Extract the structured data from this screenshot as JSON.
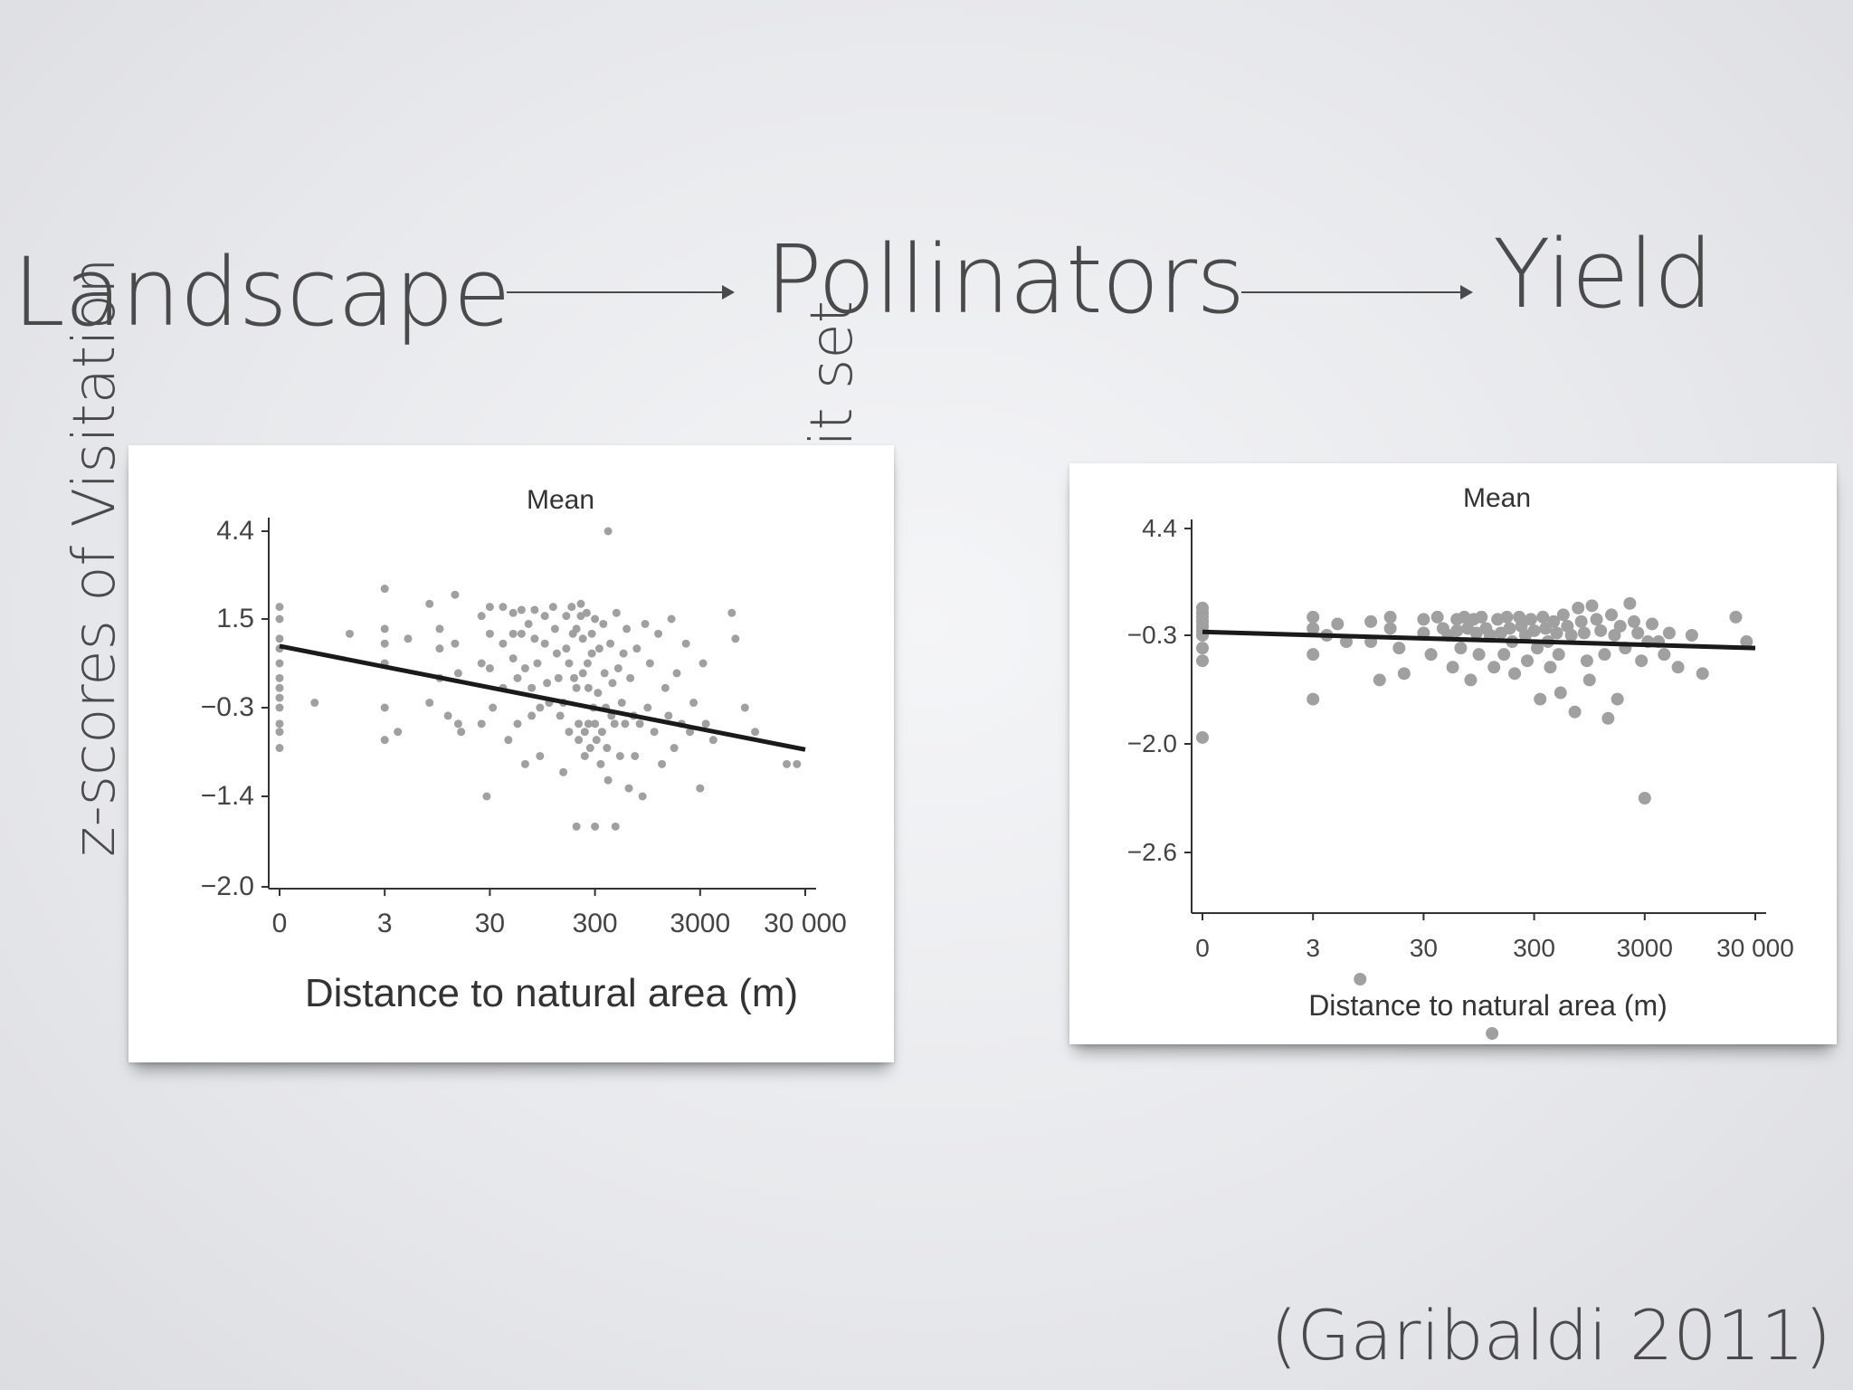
{
  "flow": {
    "step1": "Landscape",
    "step2": "Pollinators",
    "step3": "Yield"
  },
  "citation": "(Garibaldi 2011)",
  "colors": {
    "background": "#e9eaed",
    "text": "#4a4a4a",
    "points": "#a0a0a0",
    "trend": "#1a1a1a"
  },
  "chart_data": [
    {
      "type": "scatter",
      "panel_label": "z-scores of Visitation",
      "title": "Mean",
      "xlabel": "Distance to natural area (m)",
      "ylabel": "",
      "x_scale": "log",
      "x_ticks": [
        "0",
        "3",
        "30",
        "300",
        "3000",
        "30 000"
      ],
      "y_ticks": [
        "4.4",
        "1.5",
        "−0.3",
        "−1.4",
        "−2.0"
      ],
      "trend": {
        "from": [
          0,
          0.95
        ],
        "to": [
          30000,
          -0.82
        ]
      },
      "points": [
        [
          0,
          1.9
        ],
        [
          0,
          1.5
        ],
        [
          0,
          1.1
        ],
        [
          0,
          0.9
        ],
        [
          0,
          0.6
        ],
        [
          0,
          0.3
        ],
        [
          0,
          0.1
        ],
        [
          0,
          -0.1
        ],
        [
          0,
          -0.3
        ],
        [
          0,
          -0.5
        ],
        [
          0,
          -0.6
        ],
        [
          0,
          -0.8
        ],
        [
          1,
          -0.2
        ],
        [
          2,
          1.2
        ],
        [
          3,
          2.5
        ],
        [
          3,
          1.3
        ],
        [
          3,
          1.0
        ],
        [
          3,
          0.6
        ],
        [
          3,
          -0.3
        ],
        [
          3,
          -0.7
        ],
        [
          4,
          -0.6
        ],
        [
          5,
          1.1
        ],
        [
          8,
          2.0
        ],
        [
          8,
          -0.2
        ],
        [
          10,
          1.3
        ],
        [
          10,
          0.9
        ],
        [
          10,
          0.3
        ],
        [
          12,
          -0.4
        ],
        [
          14,
          2.3
        ],
        [
          14,
          1.0
        ],
        [
          15,
          0.4
        ],
        [
          15,
          -0.5
        ],
        [
          16,
          -0.6
        ],
        [
          25,
          1.6
        ],
        [
          25,
          0.6
        ],
        [
          25,
          -0.5
        ],
        [
          28,
          -1.4
        ],
        [
          30,
          1.9
        ],
        [
          30,
          1.2
        ],
        [
          30,
          0.5
        ],
        [
          32,
          -0.3
        ],
        [
          40,
          1.9
        ],
        [
          40,
          1.0
        ],
        [
          40,
          0.1
        ],
        [
          45,
          -0.7
        ],
        [
          50,
          1.7
        ],
        [
          50,
          1.2
        ],
        [
          50,
          0.7
        ],
        [
          55,
          0.3
        ],
        [
          55,
          -0.5
        ],
        [
          60,
          1.8
        ],
        [
          60,
          1.2
        ],
        [
          65,
          0.5
        ],
        [
          65,
          -1.0
        ],
        [
          70,
          1.4
        ],
        [
          75,
          0.1
        ],
        [
          75,
          -0.4
        ],
        [
          80,
          1.8
        ],
        [
          80,
          1.1
        ],
        [
          85,
          0.6
        ],
        [
          90,
          -0.3
        ],
        [
          90,
          -0.9
        ],
        [
          100,
          1.6
        ],
        [
          100,
          1.0
        ],
        [
          105,
          0.2
        ],
        [
          110,
          -0.2
        ],
        [
          120,
          1.9
        ],
        [
          125,
          1.3
        ],
        [
          130,
          0.8
        ],
        [
          135,
          0.3
        ],
        [
          140,
          -0.4
        ],
        [
          150,
          -0.2
        ],
        [
          150,
          -1.1
        ],
        [
          160,
          1.6
        ],
        [
          160,
          0.9
        ],
        [
          170,
          0.6
        ],
        [
          170,
          -0.6
        ],
        [
          180,
          1.9
        ],
        [
          185,
          1.2
        ],
        [
          190,
          0.3
        ],
        [
          200,
          1.3
        ],
        [
          200,
          0.1
        ],
        [
          210,
          -0.5
        ],
        [
          210,
          -0.7
        ],
        [
          220,
          2.0
        ],
        [
          220,
          1.6
        ],
        [
          230,
          1.1
        ],
        [
          230,
          0.4
        ],
        [
          240,
          -0.6
        ],
        [
          240,
          -0.9
        ],
        [
          250,
          1.7
        ],
        [
          255,
          0.6
        ],
        [
          260,
          0.1
        ],
        [
          260,
          -0.5
        ],
        [
          270,
          -0.8
        ],
        [
          280,
          1.2
        ],
        [
          280,
          0.8
        ],
        [
          290,
          -0.3
        ],
        [
          300,
          -0.5
        ],
        [
          300,
          1.5
        ],
        [
          310,
          -0.7
        ],
        [
          320,
          0.0
        ],
        [
          330,
          0.9
        ],
        [
          340,
          -1.0
        ],
        [
          350,
          -0.6
        ],
        [
          360,
          1.4
        ],
        [
          370,
          0.4
        ],
        [
          380,
          -0.3
        ],
        [
          390,
          -0.8
        ],
        [
          400,
          -1.2
        ],
        [
          400,
          4.4
        ],
        [
          420,
          1.0
        ],
        [
          430,
          -0.4
        ],
        [
          440,
          0.2
        ],
        [
          460,
          -0.5
        ],
        [
          470,
          -1.6
        ],
        [
          480,
          1.7
        ],
        [
          500,
          0.5
        ],
        [
          520,
          -0.9
        ],
        [
          540,
          -0.2
        ],
        [
          560,
          0.8
        ],
        [
          580,
          -0.5
        ],
        [
          600,
          1.3
        ],
        [
          630,
          -1.3
        ],
        [
          650,
          0.3
        ],
        [
          700,
          -0.4
        ],
        [
          720,
          -0.9
        ],
        [
          750,
          0.9
        ],
        [
          800,
          -0.5
        ],
        [
          850,
          -1.4
        ],
        [
          900,
          1.4
        ],
        [
          950,
          -0.3
        ],
        [
          1000,
          0.6
        ],
        [
          1100,
          -0.6
        ],
        [
          1200,
          1.2
        ],
        [
          1300,
          -1.0
        ],
        [
          1400,
          0.1
        ],
        [
          1500,
          -0.4
        ],
        [
          1600,
          1.5
        ],
        [
          1700,
          -0.8
        ],
        [
          1800,
          0.4
        ],
        [
          2000,
          -0.5
        ],
        [
          2200,
          1.0
        ],
        [
          2400,
          -0.6
        ],
        [
          2600,
          -0.2
        ],
        [
          3000,
          -1.3
        ],
        [
          3200,
          0.6
        ],
        [
          3400,
          -0.5
        ],
        [
          4000,
          -0.7
        ],
        [
          6000,
          1.7
        ],
        [
          6500,
          1.1
        ],
        [
          8000,
          -0.3
        ],
        [
          10000,
          -0.6
        ],
        [
          20000,
          -1.0
        ],
        [
          25000,
          -1.0
        ],
        [
          300,
          -1.6
        ],
        [
          200,
          -1.6
        ]
      ]
    },
    {
      "type": "scatter",
      "panel_label": "z-scores of fruit set",
      "title": "Mean",
      "xlabel": "Distance to natural area (m)",
      "ylabel": "",
      "x_scale": "log",
      "x_ticks": [
        "0",
        "3",
        "30",
        "300",
        "3000",
        "30 000"
      ],
      "y_ticks": [
        "4.4",
        "−0.3",
        "−2.0",
        "−2.6"
      ],
      "trend": {
        "from": [
          0,
          -0.15
        ],
        "to": [
          30000,
          -0.5
        ]
      },
      "points": [
        [
          0,
          0.9
        ],
        [
          0,
          0.7
        ],
        [
          0,
          0.5
        ],
        [
          0,
          0.3
        ],
        [
          0,
          0.1
        ],
        [
          0,
          -0.1
        ],
        [
          0,
          -0.3
        ],
        [
          0,
          -0.5
        ],
        [
          0,
          -0.7
        ],
        [
          0,
          -1.9
        ],
        [
          3,
          0.5
        ],
        [
          3,
          0.0
        ],
        [
          3,
          -0.6
        ],
        [
          3,
          -1.3
        ],
        [
          4,
          -0.3
        ],
        [
          5,
          0.2
        ],
        [
          6,
          -0.4
        ],
        [
          8,
          -3.3
        ],
        [
          10,
          0.3
        ],
        [
          10,
          -0.4
        ],
        [
          12,
          -1.0
        ],
        [
          15,
          0.5
        ],
        [
          15,
          0.0
        ],
        [
          18,
          -0.5
        ],
        [
          20,
          -0.9
        ],
        [
          30,
          0.4
        ],
        [
          30,
          -0.2
        ],
        [
          35,
          -0.6
        ],
        [
          40,
          0.5
        ],
        [
          45,
          0.0
        ],
        [
          50,
          -0.3
        ],
        [
          55,
          -0.8
        ],
        [
          60,
          0.4
        ],
        [
          60,
          -0.1
        ],
        [
          65,
          -0.5
        ],
        [
          70,
          0.5
        ],
        [
          75,
          0.0
        ],
        [
          80,
          -1.0
        ],
        [
          85,
          0.4
        ],
        [
          90,
          -0.2
        ],
        [
          95,
          -0.6
        ],
        [
          100,
          0.5
        ],
        [
          110,
          0.0
        ],
        [
          120,
          -0.3
        ],
        [
          125,
          -3.6
        ],
        [
          130,
          -0.8
        ],
        [
          140,
          0.4
        ],
        [
          150,
          -0.2
        ],
        [
          160,
          -0.6
        ],
        [
          170,
          0.5
        ],
        [
          180,
          0.0
        ],
        [
          190,
          -0.4
        ],
        [
          200,
          -0.9
        ],
        [
          220,
          0.5
        ],
        [
          230,
          0.1
        ],
        [
          250,
          -0.3
        ],
        [
          260,
          -0.7
        ],
        [
          280,
          0.4
        ],
        [
          300,
          -0.1
        ],
        [
          320,
          -0.5
        ],
        [
          340,
          -1.3
        ],
        [
          360,
          0.5
        ],
        [
          380,
          0.0
        ],
        [
          400,
          -0.4
        ],
        [
          420,
          -0.8
        ],
        [
          450,
          0.3
        ],
        [
          480,
          -0.2
        ],
        [
          500,
          -0.6
        ],
        [
          520,
          -1.2
        ],
        [
          550,
          0.6
        ],
        [
          600,
          0.1
        ],
        [
          650,
          -0.3
        ],
        [
          700,
          -1.5
        ],
        [
          750,
          0.9
        ],
        [
          800,
          0.3
        ],
        [
          850,
          -0.2
        ],
        [
          900,
          -0.7
        ],
        [
          950,
          -1.0
        ],
        [
          1000,
          1.0
        ],
        [
          1100,
          0.4
        ],
        [
          1200,
          -0.1
        ],
        [
          1300,
          -0.6
        ],
        [
          1400,
          -1.6
        ],
        [
          1500,
          0.6
        ],
        [
          1600,
          -0.3
        ],
        [
          1700,
          -1.3
        ],
        [
          1800,
          0.1
        ],
        [
          2000,
          -0.5
        ],
        [
          2200,
          1.1
        ],
        [
          2400,
          0.3
        ],
        [
          2600,
          -0.2
        ],
        [
          2800,
          -0.7
        ],
        [
          3000,
          -2.3
        ],
        [
          3200,
          -0.4
        ],
        [
          3500,
          0.2
        ],
        [
          4000,
          -0.4
        ],
        [
          4500,
          -0.6
        ],
        [
          5000,
          -0.2
        ],
        [
          6000,
          -0.8
        ],
        [
          8000,
          -0.3
        ],
        [
          10000,
          -0.9
        ],
        [
          20000,
          0.5
        ],
        [
          25000,
          -0.4
        ]
      ]
    }
  ]
}
